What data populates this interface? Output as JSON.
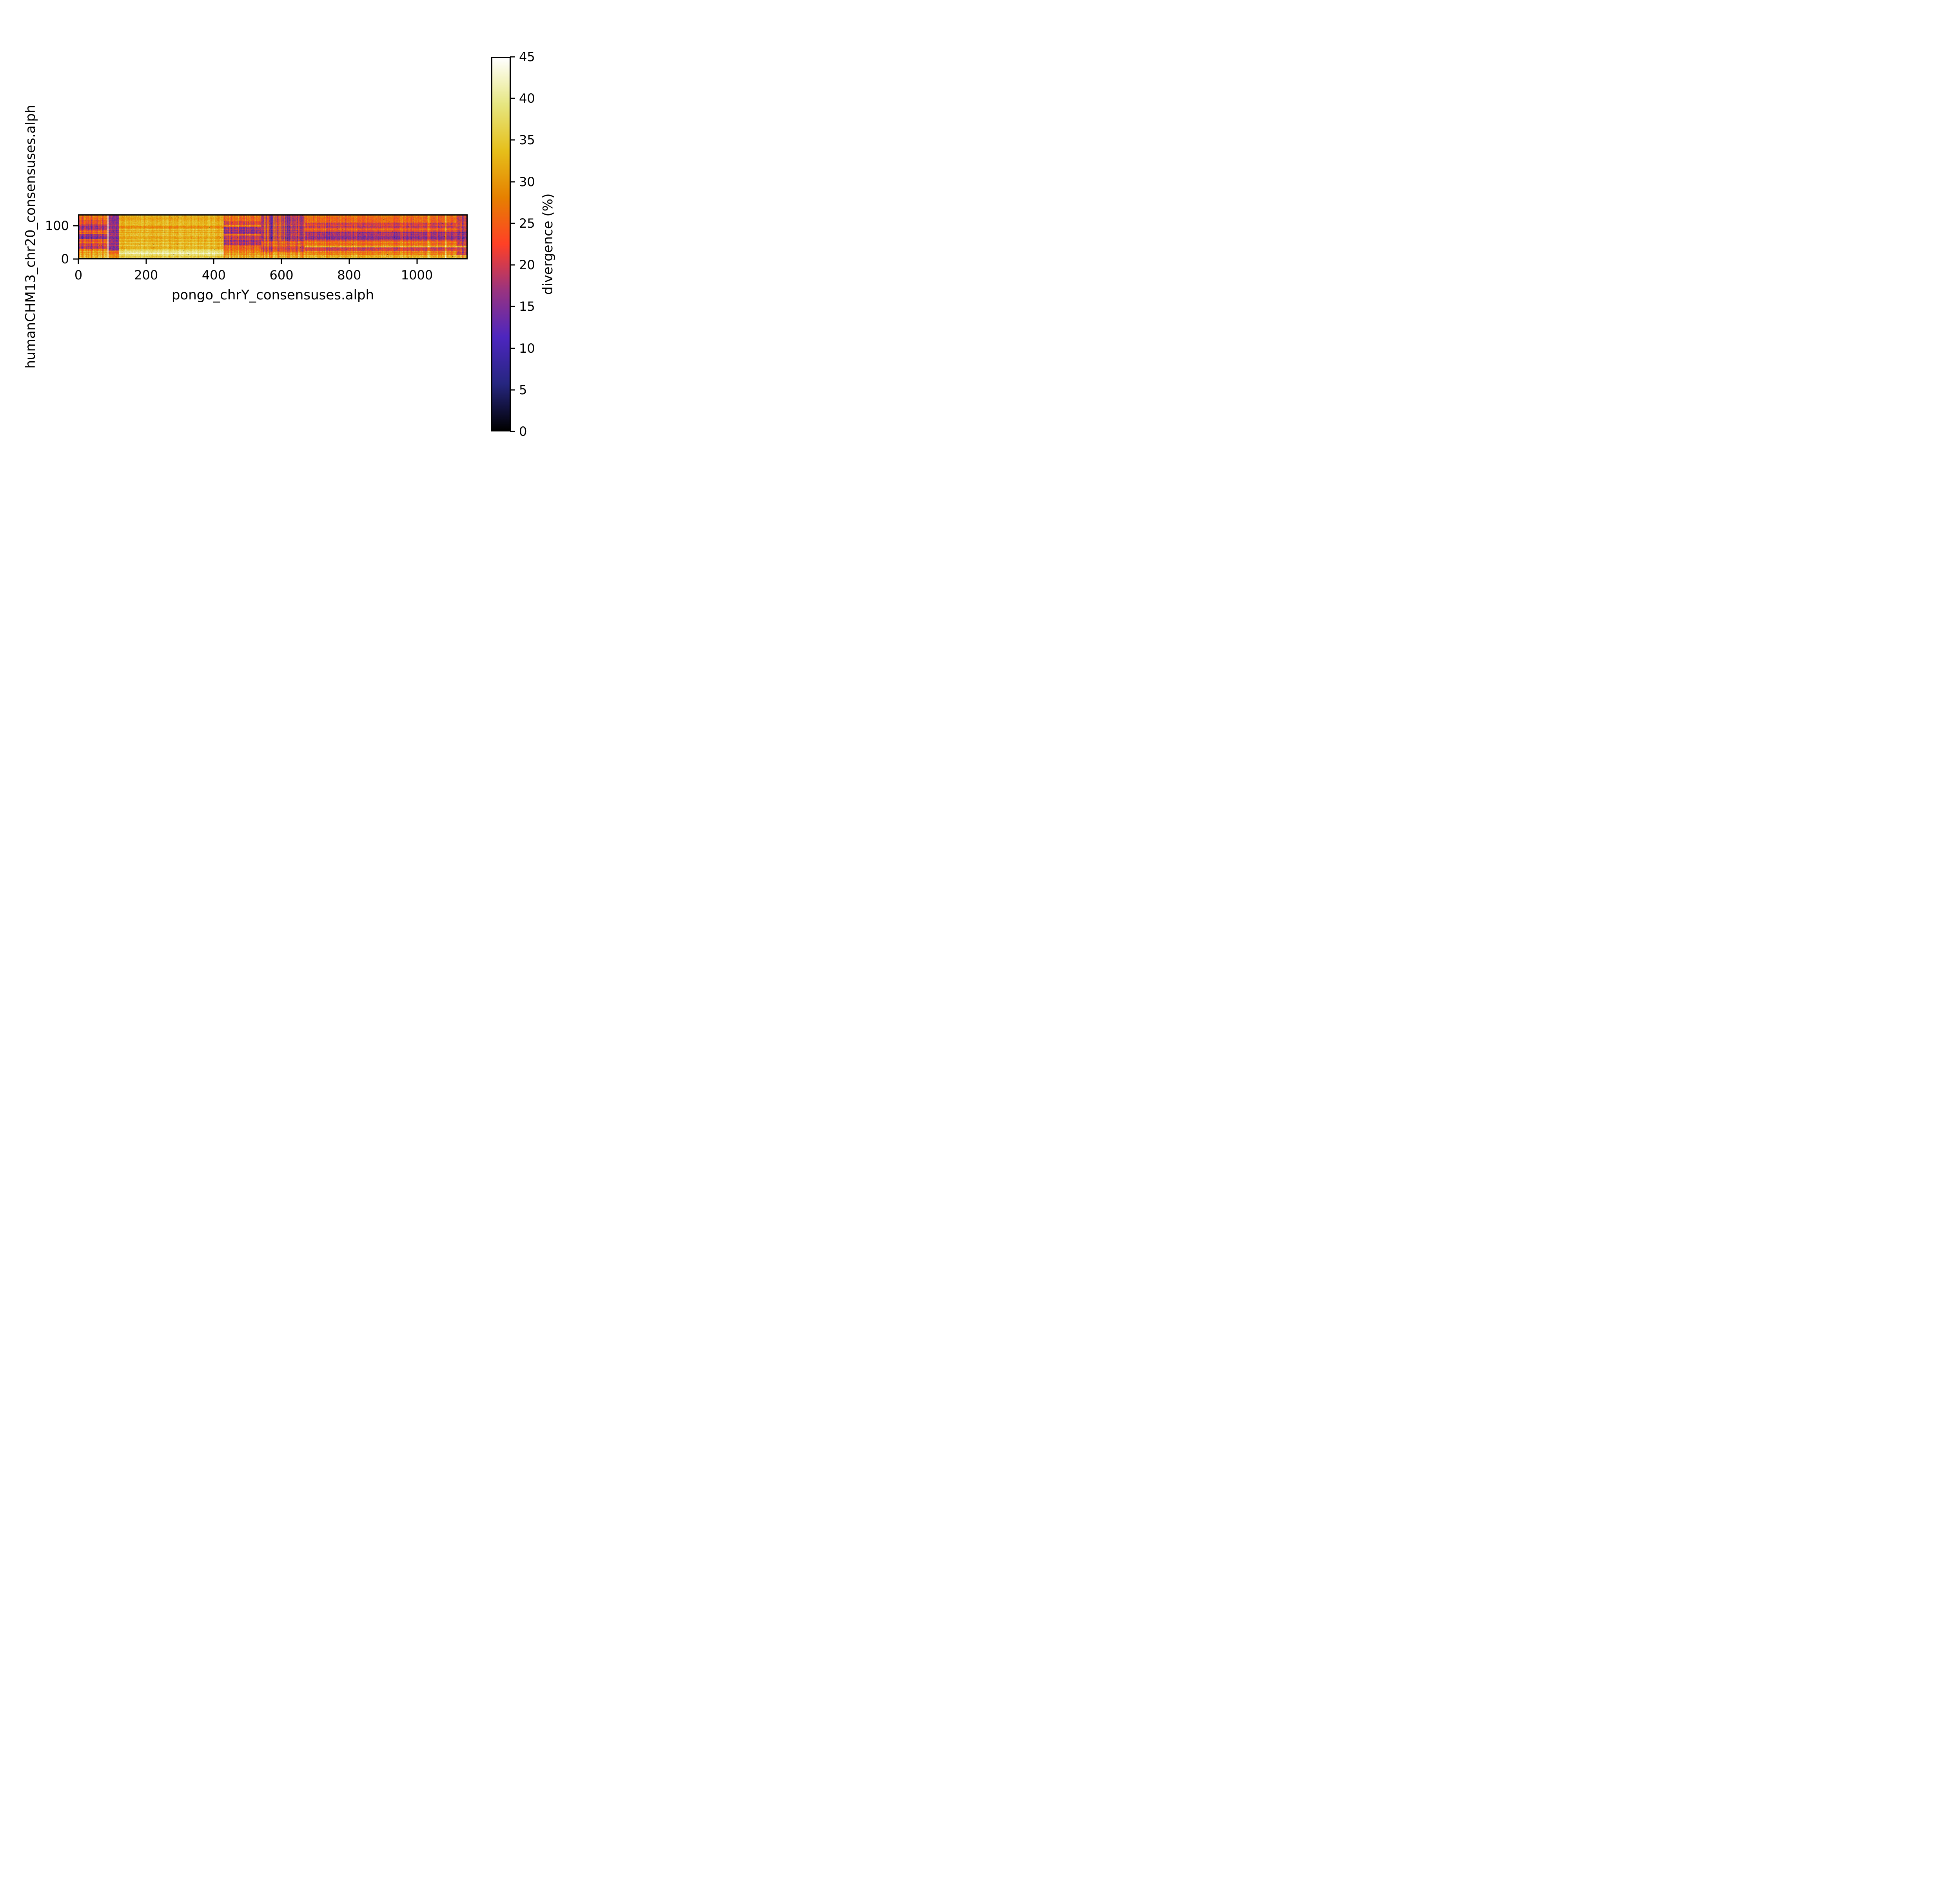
{
  "chart_data": {
    "type": "heatmap",
    "title": "",
    "xlabel": "pongo_chrY_consensuses.alph",
    "ylabel": "humanCHM13_chr20_consensuses.alph",
    "colorbar_label": "divergence (%)",
    "vmin": 0,
    "vmax": 45,
    "x_extent": [
      0,
      1150
    ],
    "y_extent": [
      0,
      134
    ],
    "x_ticks": [
      0,
      200,
      400,
      600,
      800,
      1000
    ],
    "y_ticks": [
      0,
      100
    ],
    "colorbar_ticks": [
      45,
      40,
      35,
      30,
      25,
      20,
      15,
      10,
      5,
      0
    ],
    "grid": false,
    "legend": null,
    "colormap": {
      "name": "CMRmap",
      "stops": [
        {
          "pos": 0.0,
          "color": "#000000"
        },
        {
          "pos": 0.125,
          "color": "#262680"
        },
        {
          "pos": 0.25,
          "color": "#4d26bf"
        },
        {
          "pos": 0.375,
          "color": "#993380"
        },
        {
          "pos": 0.5,
          "color": "#ff4026"
        },
        {
          "pos": 0.625,
          "color": "#e68000"
        },
        {
          "pos": 0.75,
          "color": "#e6bf1a"
        },
        {
          "pos": 0.875,
          "color": "#e6e680"
        },
        {
          "pos": 1.0,
          "color": "#ffffff"
        }
      ]
    },
    "regions": [
      {
        "x0": 0,
        "x1": 84,
        "default": 26,
        "col_amp": 5,
        "cell_amp": 4,
        "bands": [
          {
            "y0": 0,
            "y1": 10,
            "v": 33
          },
          {
            "y0": 10,
            "y1": 22,
            "v": 31
          },
          {
            "y0": 22,
            "y1": 30,
            "v": 28
          },
          {
            "y0": 30,
            "y1": 46,
            "v": 20
          },
          {
            "y0": 46,
            "y1": 60,
            "v": 24
          },
          {
            "y0": 60,
            "y1": 76,
            "v": 16
          },
          {
            "y0": 76,
            "y1": 88,
            "v": 25
          },
          {
            "y0": 88,
            "y1": 106,
            "v": 17
          },
          {
            "y0": 106,
            "y1": 120,
            "v": 23
          },
          {
            "y0": 120,
            "y1": 134,
            "v": 26
          }
        ]
      },
      {
        "x0": 84,
        "x1": 87,
        "default": 43,
        "col_amp": 1,
        "cell_amp": 1,
        "bands": []
      },
      {
        "x0": 87,
        "x1": 118,
        "default": 16,
        "col_amp": 3,
        "cell_amp": 4,
        "bands": [
          {
            "y0": 0,
            "y1": 12,
            "v": 30
          },
          {
            "y0": 12,
            "y1": 24,
            "v": 26
          }
        ]
      },
      {
        "x0": 118,
        "x1": 429,
        "default": 33,
        "col_amp": 2.5,
        "cell_amp": 3,
        "bands": [
          {
            "y0": 0,
            "y1": 8,
            "v": 36
          },
          {
            "y0": 8,
            "y1": 13,
            "v": 38
          },
          {
            "y0": 13,
            "y1": 20,
            "v": 41
          },
          {
            "y0": 20,
            "y1": 28,
            "v": 37
          },
          {
            "y0": 28,
            "y1": 40,
            "v": 34
          },
          {
            "y0": 93,
            "y1": 104,
            "v": 30
          },
          {
            "y0": 120,
            "y1": 134,
            "v": 32
          }
        ]
      },
      {
        "x0": 429,
        "x1": 540,
        "default": 27,
        "col_amp": 5,
        "cell_amp": 4,
        "bands": [
          {
            "y0": 0,
            "y1": 10,
            "v": 33
          },
          {
            "y0": 10,
            "y1": 20,
            "v": 30
          },
          {
            "y0": 40,
            "y1": 58,
            "v": 18
          },
          {
            "y0": 58,
            "y1": 72,
            "v": 21
          },
          {
            "y0": 76,
            "y1": 98,
            "v": 17
          },
          {
            "y0": 104,
            "y1": 116,
            "v": 22
          }
        ]
      },
      {
        "x0": 540,
        "x1": 670,
        "default": 24,
        "col_amp": 6,
        "cell_amp": 4,
        "stripe": {
          "frac": 0.5,
          "dip": 8,
          "y0": 55
        },
        "bands": [
          {
            "y0": 0,
            "y1": 10,
            "v": 32
          },
          {
            "y0": 10,
            "y1": 20,
            "v": 29
          },
          {
            "y0": 20,
            "y1": 34,
            "v": 22
          }
        ]
      },
      {
        "x0": 670,
        "x1": 1120,
        "default": 26,
        "col_amp": 4,
        "cell_amp": 4,
        "bands": [
          {
            "y0": 0,
            "y1": 10,
            "v": 33
          },
          {
            "y0": 10,
            "y1": 22,
            "v": 28
          },
          {
            "y0": 22,
            "y1": 34,
            "v": 21
          },
          {
            "y0": 34,
            "y1": 39,
            "v": 34
          },
          {
            "y0": 39,
            "y1": 56,
            "v": 26
          },
          {
            "y0": 56,
            "y1": 84,
            "v": 17
          },
          {
            "y0": 84,
            "y1": 96,
            "v": 24
          },
          {
            "y0": 96,
            "y1": 112,
            "v": 20
          },
          {
            "y0": 112,
            "y1": 134,
            "v": 26
          }
        ]
      },
      {
        "x0": 1120,
        "x1": 1150,
        "default": 19,
        "col_amp": 6,
        "cell_amp": 5,
        "bands": [
          {
            "y0": 0,
            "y1": 10,
            "v": 31
          },
          {
            "y0": 34,
            "y1": 39,
            "v": 33
          },
          {
            "y0": 56,
            "y1": 84,
            "v": 15
          }
        ]
      }
    ],
    "highlight_columns": [
      {
        "x": 958,
        "w": 4,
        "boost": 4
      },
      {
        "x": 1035,
        "w": 6,
        "boost": 6
      },
      {
        "x": 1086,
        "w": 5,
        "boost": 6
      }
    ],
    "row_noise_amp": 2,
    "speckle": {
      "prob": 0.0008,
      "v": 1
    }
  }
}
